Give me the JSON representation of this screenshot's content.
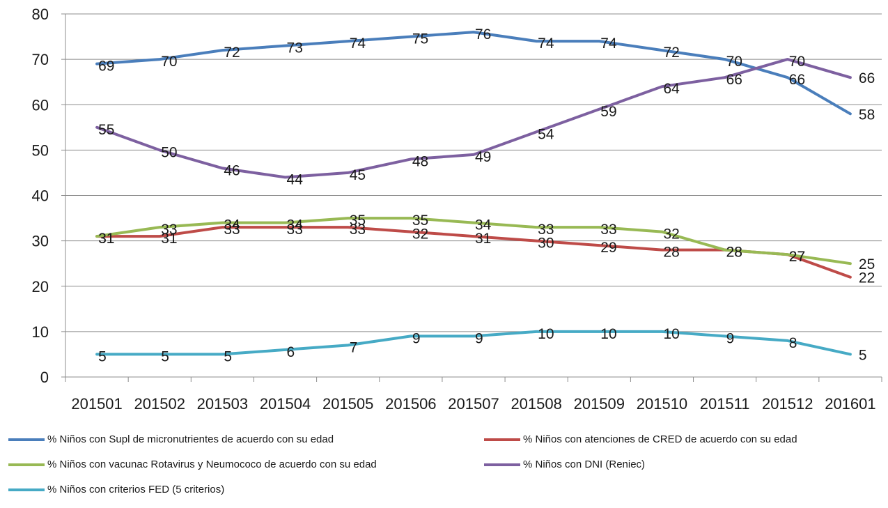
{
  "chart_data": {
    "type": "line",
    "categories": [
      "201501",
      "201502",
      "201503",
      "201504",
      "201505",
      "201506",
      "201507",
      "201508",
      "201509",
      "201510",
      "201511",
      "201512",
      "201601"
    ],
    "ylim": [
      0,
      80
    ],
    "yticks": [
      0,
      10,
      20,
      30,
      40,
      50,
      60,
      70,
      80
    ],
    "grid": true,
    "legend_position": "bottom",
    "series": [
      {
        "name": "% Niños con Supl de micronutrientes de acuerdo con su edad",
        "color": "#4a7ebb",
        "values": [
          69,
          70,
          72,
          73,
          74,
          75,
          76,
          74,
          74,
          72,
          70,
          66,
          58
        ]
      },
      {
        "name": "% Niños  con atenciones de CRED de acuerdo con su edad",
        "color": "#be4b48",
        "values": [
          31,
          31,
          33,
          33,
          33,
          32,
          31,
          30,
          29,
          28,
          28,
          27,
          22
        ]
      },
      {
        "name": "% Niños con vacunac Rotavirus y Neumococo de acuerdo con su edad",
        "color": "#98b954",
        "values": [
          31,
          33,
          34,
          34,
          35,
          35,
          34,
          33,
          33,
          32,
          28,
          27,
          25
        ]
      },
      {
        "name": "% Niños con DNI (Reniec)",
        "color": "#7d60a0",
        "values": [
          55,
          50,
          46,
          44,
          45,
          48,
          49,
          54,
          59,
          64,
          66,
          70,
          66
        ]
      },
      {
        "name": "% Niños con criterios FED (5 criterios)",
        "color": "#46aac5",
        "values": [
          5,
          5,
          5,
          6,
          7,
          9,
          9,
          10,
          10,
          10,
          9,
          8,
          5
        ]
      }
    ]
  }
}
